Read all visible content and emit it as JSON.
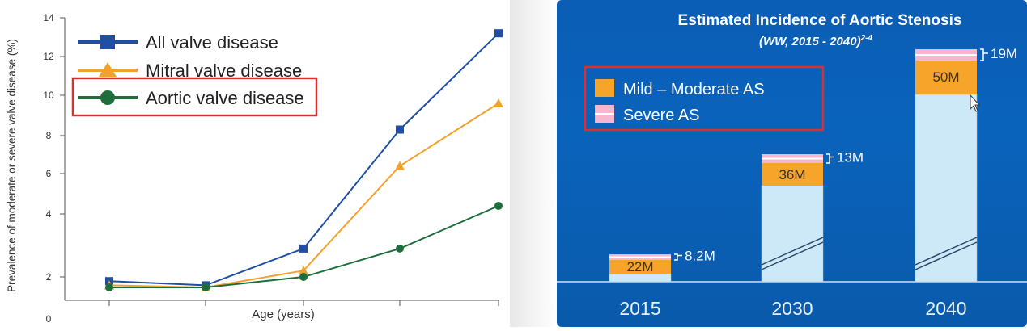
{
  "chart_data": [
    {
      "type": "line",
      "title": "",
      "xlabel": "Age (years)",
      "ylabel": "Prevalence of moderate or severe valve disease (%)",
      "ylim": [
        0,
        14
      ],
      "yticks": [
        "0",
        "2",
        "4",
        "6",
        "8",
        "10",
        "12",
        "14"
      ],
      "x": [
        1,
        2,
        3,
        4,
        5
      ],
      "series": [
        {
          "name": "All valve disease",
          "color": "#1f4ea3",
          "marker": "square",
          "values": [
            1.8,
            1.6,
            2.9,
            8.3,
            13.2
          ]
        },
        {
          "name": "Mitral valve disease",
          "color": "#f2a22a",
          "marker": "triangle",
          "values": [
            1.6,
            1.5,
            2.2,
            6.4,
            9.6
          ]
        },
        {
          "name": "Aortic valve disease",
          "color": "#1e6e3d",
          "marker": "circle",
          "values": [
            1.5,
            1.5,
            2.0,
            2.9,
            4.4
          ]
        }
      ],
      "legend_position": "top-left",
      "highlighted_legend_entry": "Aortic valve disease"
    },
    {
      "type": "bar",
      "title": "Estimated Incidence of Aortic Stenosis",
      "subtitle": "(WW, 2015 - 2040)",
      "subtitle_superscript": "2-4",
      "categories": [
        "2015",
        "2030",
        "2040"
      ],
      "series": [
        {
          "name": "Mild – Moderate AS",
          "color": "#f7a42a",
          "labels": [
            "22M",
            "36M",
            "50M"
          ]
        },
        {
          "name": "Severe AS",
          "color": "#f6b6cd",
          "labels": [
            "8.2M",
            "13M",
            "19M"
          ]
        }
      ],
      "legend_position": "top-left",
      "legend_highlighted": true
    }
  ]
}
